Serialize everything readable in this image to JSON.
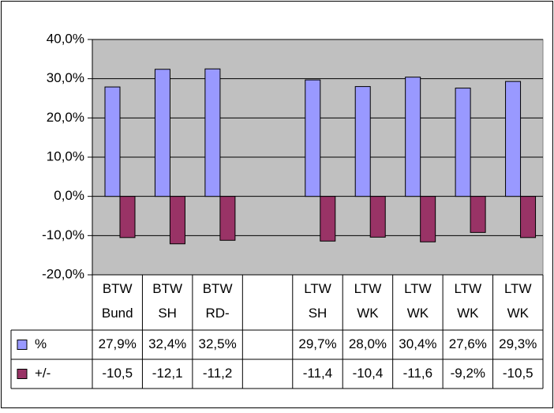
{
  "chart_data": {
    "type": "bar",
    "categories": [
      "BTW Bund",
      "BTW SH",
      "BTW RD-",
      null,
      "LTW SH",
      "LTW WK",
      "LTW WK",
      "LTW WK",
      "LTW WK"
    ],
    "series": [
      {
        "name": "%",
        "color": "#9999ff",
        "values": [
          27.9,
          32.4,
          32.5,
          null,
          29.7,
          28.0,
          30.4,
          27.6,
          29.3
        ],
        "value_labels": [
          "27,9%",
          "32,4%",
          "32,5%",
          null,
          "29,7%",
          "28,0%",
          "30,4%",
          "27,6%",
          "29,3%"
        ]
      },
      {
        "name": "+/-",
        "color": "#993366",
        "values": [
          -10.5,
          -12.1,
          -11.2,
          null,
          -11.4,
          -10.4,
          -11.6,
          -9.2,
          -10.5
        ],
        "value_labels": [
          "-10,5",
          "-12,1",
          "-11,2",
          null,
          "-11,4",
          "-10,4",
          "-11,6",
          "-9,2%",
          "-10,5"
        ]
      }
    ],
    "ylim": [
      -20,
      40
    ],
    "yticks": [
      {
        "value": -20,
        "label": "-20,0%"
      },
      {
        "value": -10,
        "label": "-10,0%"
      },
      {
        "value": 0,
        "label": "0,0%"
      },
      {
        "value": 10,
        "label": "10,0%"
      },
      {
        "value": 20,
        "label": "20,0%"
      },
      {
        "value": 30,
        "label": "30,0%"
      },
      {
        "value": 40,
        "label": "40,0%"
      }
    ],
    "grid": true
  }
}
